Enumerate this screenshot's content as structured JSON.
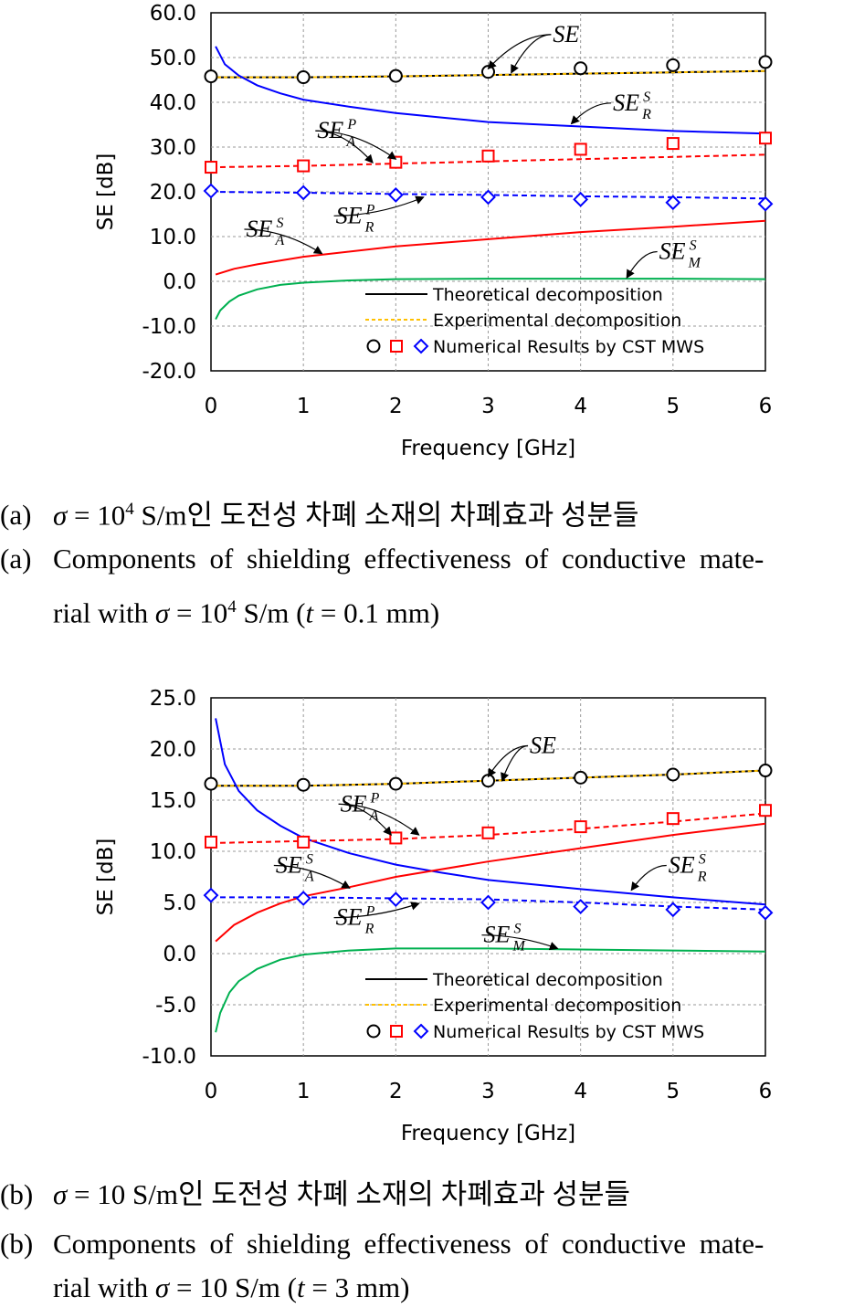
{
  "chart_data": [
    {
      "type": "line",
      "ylabel": "SE [dB]",
      "xlabel": "Frequency [GHz]",
      "xlim": [
        0,
        6
      ],
      "ylim": [
        -20,
        60
      ],
      "xticks": [
        0,
        1,
        2,
        3,
        4,
        5,
        6
      ],
      "yticks": [
        -20,
        -10,
        0,
        10,
        20,
        30,
        40,
        50,
        60
      ],
      "ytick_labels": [
        "-20.0",
        "-10.0",
        "0.0",
        "10.0",
        "20.0",
        "30.0",
        "40.0",
        "50.0",
        "60.0"
      ],
      "xtick_labels": [
        "0",
        "1",
        "2",
        "3",
        "4",
        "5",
        "6"
      ],
      "grid": true,
      "legend": {
        "position": "bottom-right",
        "entries": [
          "Theoretical decomposition",
          "Experimental decomposition",
          "Numerical Results by CST MWS"
        ]
      },
      "lines": [
        {
          "id": "SE",
          "color": "#000000",
          "dash": "",
          "x": [
            0,
            1,
            2,
            3,
            4,
            5,
            6
          ],
          "y": [
            45.6,
            45.6,
            45.8,
            46.1,
            46.4,
            46.7,
            47.0
          ]
        },
        {
          "id": "SE-exp",
          "color": "#FFC000",
          "dash": "4,3",
          "x": [
            0,
            1,
            2,
            3,
            4,
            5,
            6
          ],
          "y": [
            45.6,
            45.6,
            45.8,
            46.1,
            46.4,
            46.7,
            47.0
          ]
        },
        {
          "id": "SE_R^S",
          "color": "#0000FF",
          "dash": "",
          "x": [
            0.05,
            0.15,
            0.3,
            0.5,
            0.75,
            1,
            1.5,
            2,
            3,
            4,
            5,
            6
          ],
          "y": [
            52.5,
            48.5,
            46.0,
            43.8,
            42.0,
            40.6,
            39.0,
            37.6,
            35.6,
            34.6,
            33.6,
            33.0
          ]
        },
        {
          "id": "SE_A^P",
          "color": "#FF0000",
          "dash": "6,4",
          "x": [
            0,
            1,
            2,
            3,
            4,
            5,
            6
          ],
          "y": [
            25.5,
            25.8,
            26.3,
            26.8,
            27.3,
            27.8,
            28.3
          ]
        },
        {
          "id": "SE_R^P",
          "color": "#0000FF",
          "dash": "6,4",
          "x": [
            0,
            1,
            2,
            3,
            4,
            5,
            6
          ],
          "y": [
            20.0,
            19.8,
            19.5,
            19.3,
            19.0,
            18.8,
            18.5
          ]
        },
        {
          "id": "SE_A^S",
          "color": "#FF0000",
          "dash": "",
          "x": [
            0.05,
            0.25,
            0.5,
            1,
            2,
            3,
            4,
            5,
            6
          ],
          "y": [
            1.5,
            2.8,
            3.8,
            5.5,
            7.8,
            9.4,
            11.0,
            12.2,
            13.5
          ]
        },
        {
          "id": "SE_M^S",
          "color": "#00B050",
          "dash": "",
          "x": [
            0.05,
            0.1,
            0.2,
            0.3,
            0.5,
            0.75,
            1,
            1.5,
            2,
            3,
            4,
            5,
            6
          ],
          "y": [
            -8.5,
            -6.5,
            -4.5,
            -3.2,
            -1.8,
            -0.8,
            -0.3,
            0.2,
            0.5,
            0.6,
            0.6,
            0.6,
            0.5
          ]
        }
      ],
      "markers": [
        {
          "shape": "circle",
          "color": "#000000",
          "x": [
            0,
            1,
            2,
            3,
            4,
            5,
            6
          ],
          "y": [
            45.8,
            45.6,
            45.9,
            46.8,
            47.6,
            48.3,
            49.0
          ]
        },
        {
          "shape": "square",
          "color": "#FF0000",
          "x": [
            0,
            1,
            2,
            3,
            4,
            5,
            6
          ],
          "y": [
            25.5,
            25.8,
            26.6,
            28.0,
            29.5,
            30.8,
            32.0
          ]
        },
        {
          "shape": "diamond",
          "color": "#0000FF",
          "x": [
            0,
            1,
            2,
            3,
            4,
            5,
            6
          ],
          "y": [
            20.2,
            19.8,
            19.3,
            18.8,
            18.3,
            17.6,
            17.3
          ]
        }
      ],
      "annotations": [
        {
          "main": "SE",
          "sup": "",
          "sub": "",
          "tx": 3.7,
          "ty": 53.5,
          "to": [
            [
              3.0,
              47.5
            ],
            [
              3.25,
              46.6
            ]
          ]
        },
        {
          "main": "SE",
          "sup": "S",
          "sub": "R",
          "tx": 4.35,
          "ty": 38.2,
          "to": [
            [
              3.9,
              35.2
            ]
          ]
        },
        {
          "main": "SE",
          "sup": "P",
          "sub": "A",
          "tx": 1.15,
          "ty": 32.0,
          "to": [
            [
              1.75,
              26.5
            ],
            [
              2.0,
              27.3
            ]
          ]
        },
        {
          "main": "SE",
          "sup": "P",
          "sub": "R",
          "tx": 1.35,
          "ty": 13.0,
          "to": [
            [
              2.3,
              18.8
            ]
          ]
        },
        {
          "main": "SE",
          "sup": "S",
          "sub": "A",
          "tx": 0.38,
          "ty": 10.0,
          "to": [
            [
              1.2,
              6.2
            ]
          ]
        },
        {
          "main": "SE",
          "sup": "S",
          "sub": "M",
          "tx": 4.85,
          "ty": 5.0,
          "to": [
            [
              4.5,
              0.8
            ]
          ]
        }
      ]
    },
    {
      "type": "line",
      "ylabel": "SE [dB]",
      "xlabel": "Frequency [GHz]",
      "xlim": [
        0,
        6
      ],
      "ylim": [
        -10,
        25
      ],
      "xticks": [
        0,
        1,
        2,
        3,
        4,
        5,
        6
      ],
      "yticks": [
        -10,
        -5,
        0,
        5,
        10,
        15,
        20,
        25
      ],
      "ytick_labels": [
        "-10.0",
        "-5.0",
        "0.0",
        "5.0",
        "10.0",
        "15.0",
        "20.0",
        "25.0"
      ],
      "xtick_labels": [
        "0",
        "1",
        "2",
        "3",
        "4",
        "5",
        "6"
      ],
      "grid": true,
      "legend": {
        "position": "bottom-right",
        "entries": [
          "Theoretical decomposition",
          "Experimental decomposition",
          "Numerical Results by CST MWS"
        ]
      },
      "lines": [
        {
          "id": "SE",
          "color": "#000000",
          "dash": "",
          "x": [
            0,
            1,
            2,
            3,
            4,
            5,
            6
          ],
          "y": [
            16.4,
            16.4,
            16.6,
            16.9,
            17.2,
            17.5,
            17.9
          ]
        },
        {
          "id": "SE-exp",
          "color": "#FFC000",
          "dash": "4,3",
          "x": [
            0,
            1,
            2,
            3,
            4,
            5,
            6
          ],
          "y": [
            16.4,
            16.4,
            16.6,
            16.9,
            17.2,
            17.5,
            17.9
          ]
        },
        {
          "id": "SE_R^S",
          "color": "#0000FF",
          "dash": "",
          "x": [
            0.05,
            0.15,
            0.3,
            0.5,
            0.75,
            1,
            1.5,
            2,
            2.5,
            3,
            4,
            5,
            6
          ],
          "y": [
            23.0,
            18.5,
            15.9,
            14.0,
            12.5,
            11.3,
            9.8,
            8.7,
            7.9,
            7.2,
            6.3,
            5.5,
            4.8
          ]
        },
        {
          "id": "SE_A^P",
          "color": "#FF0000",
          "dash": "6,4",
          "x": [
            0,
            1,
            2,
            3,
            4,
            5,
            6
          ],
          "y": [
            10.8,
            11.0,
            11.2,
            11.6,
            12.2,
            12.9,
            13.7
          ]
        },
        {
          "id": "SE_R^P",
          "color": "#0000FF",
          "dash": "6,4",
          "x": [
            0,
            1,
            2,
            3,
            4,
            5,
            6
          ],
          "y": [
            5.5,
            5.5,
            5.4,
            5.3,
            5.0,
            4.6,
            4.3
          ]
        },
        {
          "id": "SE_A^S",
          "color": "#FF0000",
          "dash": "",
          "x": [
            0.05,
            0.25,
            0.5,
            0.75,
            1,
            1.5,
            2,
            3,
            4,
            5,
            6
          ],
          "y": [
            1.2,
            2.8,
            4.0,
            4.9,
            5.6,
            6.5,
            7.5,
            9.0,
            10.3,
            11.6,
            12.7
          ]
        },
        {
          "id": "SE_M^S",
          "color": "#00B050",
          "dash": "",
          "x": [
            0.05,
            0.1,
            0.2,
            0.3,
            0.5,
            0.75,
            1,
            1.5,
            2,
            3,
            4,
            5,
            6
          ],
          "y": [
            -7.7,
            -5.8,
            -3.8,
            -2.7,
            -1.5,
            -0.6,
            -0.1,
            0.3,
            0.5,
            0.5,
            0.4,
            0.3,
            0.2
          ]
        }
      ],
      "markers": [
        {
          "shape": "circle",
          "color": "#000000",
          "x": [
            0,
            1,
            2,
            3,
            4,
            5,
            6
          ],
          "y": [
            16.6,
            16.5,
            16.6,
            16.9,
            17.2,
            17.5,
            17.9
          ]
        },
        {
          "shape": "square",
          "color": "#FF0000",
          "x": [
            0,
            1,
            2,
            3,
            4,
            5,
            6
          ],
          "y": [
            10.9,
            10.9,
            11.3,
            11.8,
            12.4,
            13.2,
            14.0
          ]
        },
        {
          "shape": "diamond",
          "color": "#0000FF",
          "x": [
            0,
            1,
            2,
            3,
            4,
            5,
            6
          ],
          "y": [
            5.7,
            5.4,
            5.3,
            5.0,
            4.6,
            4.3,
            4.0
          ]
        }
      ],
      "annotations": [
        {
          "main": "SE",
          "sup": "",
          "sub": "",
          "tx": 3.45,
          "ty": 19.6,
          "to": [
            [
              3.0,
              17.3
            ],
            [
              3.15,
              16.9
            ]
          ]
        },
        {
          "main": "SE",
          "sup": "P",
          "sub": "A",
          "tx": 1.4,
          "ty": 13.9,
          "to": [
            [
              1.95,
              11.6
            ],
            [
              2.25,
              11.6
            ]
          ]
        },
        {
          "main": "SE",
          "sup": "S",
          "sub": "A",
          "tx": 0.7,
          "ty": 7.9,
          "to": [
            [
              1.5,
              6.4
            ]
          ]
        },
        {
          "main": "SE",
          "sup": "S",
          "sub": "R",
          "tx": 4.95,
          "ty": 7.9,
          "to": [
            [
              4.55,
              6.2
            ]
          ]
        },
        {
          "main": "SE",
          "sup": "P",
          "sub": "R",
          "tx": 1.35,
          "ty": 2.8,
          "to": [
            [
              2.25,
              4.9
            ]
          ]
        },
        {
          "main": "SE",
          "sup": "S",
          "sub": "M",
          "tx": 2.95,
          "ty": 1.1,
          "to": [
            [
              3.75,
              0.5
            ]
          ]
        }
      ]
    }
  ],
  "captions": {
    "a": {
      "kr_label": "(a)",
      "kr_sigma": "σ",
      "kr_eq": " = 10",
      "kr_exp": "4",
      "kr_rest": " S/m인 도전성 차폐 소재의 차폐효과 성분들",
      "en_label": "(a)",
      "en_line1": "Components of shielding effectiveness of conductive mate-",
      "en_line2_pre": "rial with ",
      "en_sigma": "σ",
      "en_eq": " = 10",
      "en_exp": "4",
      "en_unit": " S/m (",
      "en_t": "t",
      "en_end": " = 0.1  mm)"
    },
    "b": {
      "kr_label": "(b)",
      "kr_sigma": "σ",
      "kr_eq": " = 10",
      "kr_rest": "  S/m인 도전성 차폐 소재의 차폐효과 성분들",
      "en_label": "(b)",
      "en_line1": "Components of shielding effectiveness of conductive mate-",
      "en_line2_pre": "rial with ",
      "en_sigma": "σ",
      "en_eq": " = 10  S/m (",
      "en_t": "t",
      "en_end": " = 3  mm)"
    }
  }
}
